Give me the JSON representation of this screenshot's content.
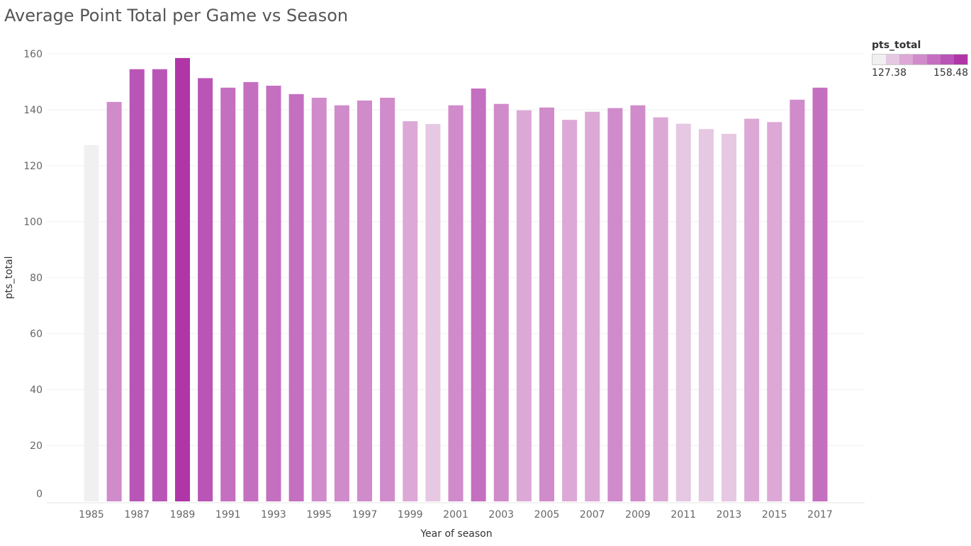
{
  "chart_data": {
    "type": "bar",
    "title": "Average Point Total per Game vs Season",
    "xlabel": "Year of season",
    "ylabel": "pts_total",
    "ylim": [
      0,
      160
    ],
    "yticks": [
      0,
      20,
      40,
      60,
      80,
      100,
      120,
      140,
      160
    ],
    "grid": true,
    "categories": [
      1985,
      1986,
      1987,
      1988,
      1989,
      1990,
      1991,
      1992,
      1993,
      1994,
      1995,
      1996,
      1997,
      1998,
      1999,
      2000,
      2001,
      2002,
      2003,
      2004,
      2005,
      2006,
      2007,
      2008,
      2009,
      2010,
      2011,
      2012,
      2013,
      2014,
      2015,
      2016,
      2017
    ],
    "xtick_labels": [
      "1985",
      "1987",
      "1989",
      "1991",
      "1993",
      "1995",
      "1997",
      "1999",
      "2001",
      "2003",
      "2005",
      "2007",
      "2009",
      "2011",
      "2013",
      "2015",
      "2017"
    ],
    "values": [
      127.4,
      142.8,
      154.5,
      154.5,
      158.5,
      151.3,
      147.9,
      149.9,
      148.6,
      145.6,
      144.3,
      141.6,
      143.3,
      144.3,
      135.9,
      134.9,
      141.6,
      147.6,
      142.1,
      139.8,
      140.8,
      136.4,
      139.3,
      140.6,
      141.6,
      137.3,
      135.0,
      133.1,
      131.4,
      136.8,
      135.6,
      143.6,
      147.9
    ],
    "legend": {
      "title": "pts_total",
      "min_label": "127.38",
      "max_label": "158.48",
      "min": 127.38,
      "max": 158.48,
      "placement": "top-right",
      "colors": [
        "#f0f0f0",
        "#e6c8e2",
        "#dca8d6",
        "#d08bcb",
        "#c56fc1",
        "#b955b7",
        "#b036a8"
      ]
    }
  }
}
